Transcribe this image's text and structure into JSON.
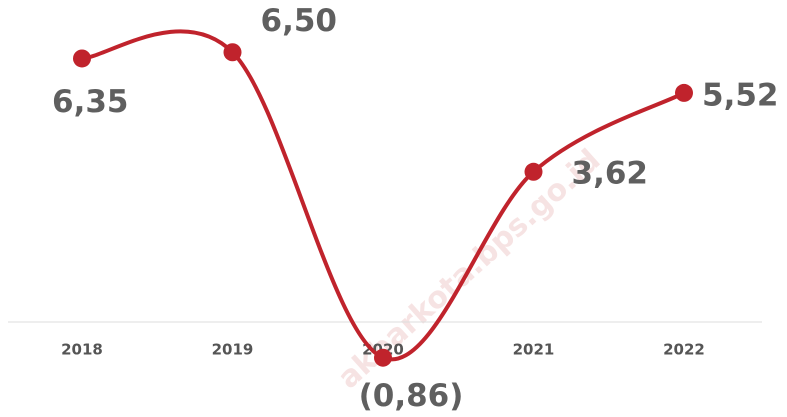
{
  "chart_data": {
    "type": "line",
    "categories": [
      "2018",
      "2019",
      "2020",
      "2021",
      "2022"
    ],
    "values": [
      6.35,
      6.5,
      -0.86,
      3.62,
      5.52
    ],
    "value_labels": [
      "6,35",
      "6,50",
      "(0,86)",
      "3,62",
      "5,52"
    ],
    "color": "#c0232c",
    "ylim": [
      -1,
      7
    ],
    "watermark": "akbarkota.bps.go.id"
  }
}
